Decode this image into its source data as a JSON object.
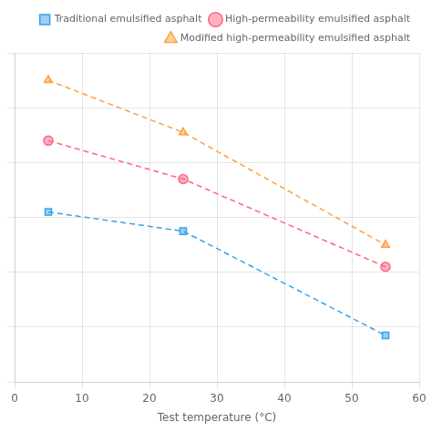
{
  "chart_data": {
    "type": "line",
    "xlabel": "Test temperature (°C)",
    "x": [
      5,
      25,
      55
    ],
    "series": [
      {
        "name": "Traditional emulsified asphalt",
        "values": [
          0.62,
          0.55,
          0.17
        ],
        "marker": "square",
        "line_style": "dashed"
      },
      {
        "name": "High-permeability emulsified asphalt",
        "values": [
          0.88,
          0.74,
          0.42
        ],
        "marker": "circle",
        "line_style": "dashed"
      },
      {
        "name": "Modified high-permeability emulsified asphalt",
        "values": [
          1.1,
          0.91,
          0.5
        ],
        "marker": "triangle",
        "line_style": "dashed"
      }
    ],
    "xlim": [
      0,
      60
    ],
    "xticks": [
      0,
      10,
      20,
      30,
      40,
      50,
      60
    ],
    "ylim": [
      0,
      1.2
    ],
    "yticks": [
      0,
      0.2,
      0.4,
      0.6,
      0.8,
      1.0,
      1.2
    ],
    "grid": true,
    "legend": "upper right",
    "tick_labels": "x"
  }
}
